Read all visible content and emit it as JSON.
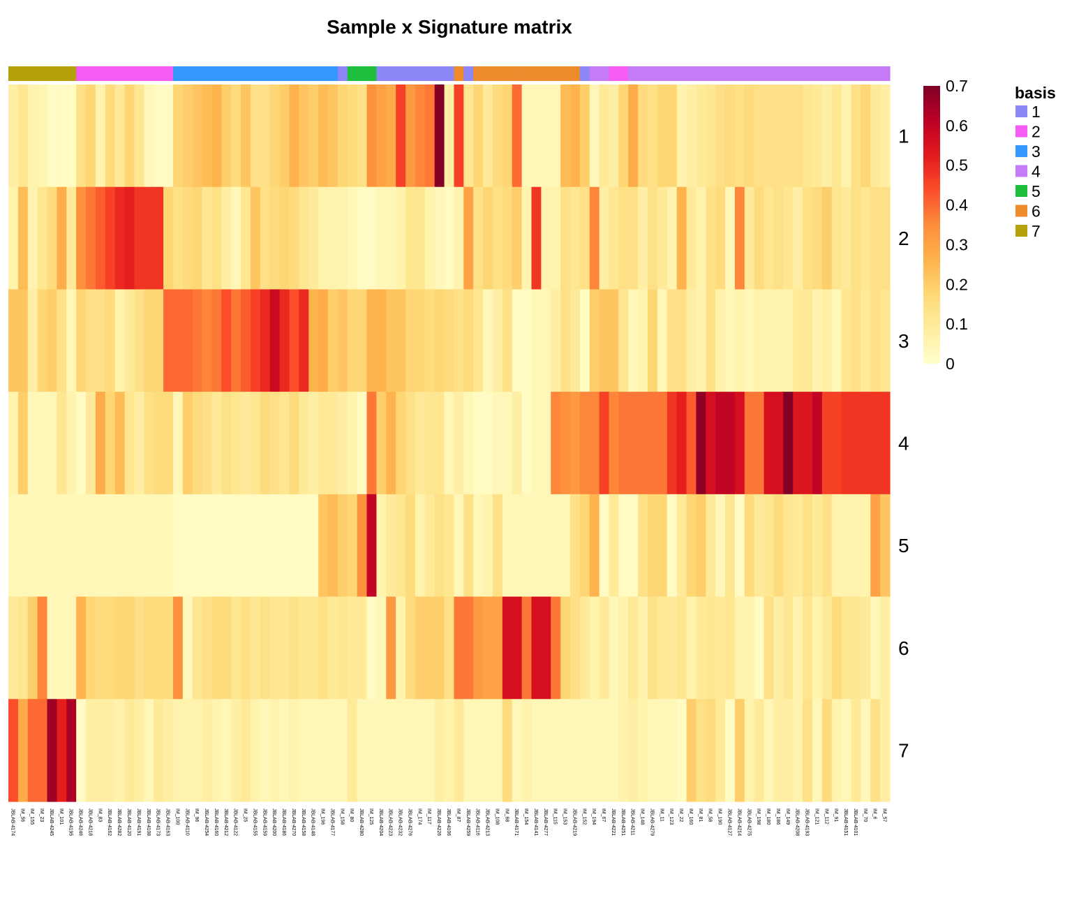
{
  "chart_data": {
    "type": "heatmap",
    "title": "Sample x Signature matrix",
    "rows": [
      "1",
      "2",
      "3",
      "4",
      "5",
      "6",
      "7"
    ],
    "columns": [
      "JBLAB-4174",
      "IM_56",
      "IM_155",
      "IM_23",
      "JBLAB-4245",
      "IM_101",
      "JBLAB-4195",
      "JBLAB-4246",
      "JBLAB-4218",
      "IM_83",
      "JBLAB-4162",
      "JBLAB-4282",
      "JBLAB-4120",
      "JBLAB-4191",
      "JBLAB-4108",
      "JBLAB-4173",
      "JBLAB-4163",
      "IM_100",
      "JBLAB-4110",
      "IM_96",
      "JBLAB-4254",
      "JBLAB-4160",
      "JBLAB-4212",
      "JBLAB-4122",
      "IM_25",
      "JBLAB-4155",
      "JBLAB-4159",
      "JBLAB-4200",
      "JBLAB-4186",
      "JBLAB-4270",
      "JBLAB-4158",
      "JBLAB-4148",
      "IM_196",
      "JBLAB-4177",
      "IM_158",
      "IM_80",
      "JBLAB-4280",
      "IM_125",
      "JBLAB-4204",
      "JBLAB-4223",
      "JBLAB-4232",
      "JBLAB-4276",
      "IM_174",
      "IM_117",
      "JBLAB-4226",
      "JBLAB-4106",
      "IM_87",
      "JBLAB-4259",
      "JBLAB-4116",
      "JBLAB-4213",
      "IM_108",
      "IM_68",
      "JBLAB-4171",
      "IM_154",
      "JBLAB-4141",
      "JBLAB-4277",
      "IM_115",
      "IM_153",
      "JBLAB-4219",
      "IM_152",
      "IM_194",
      "IM_67",
      "JBLAB-4221",
      "JBLAB-4251",
      "JBLAB-4211",
      "IM_148",
      "JBLAB-4279",
      "IM_11",
      "IM_123",
      "IM_22",
      "IM_160",
      "IM_81",
      "IM_58",
      "IM_190",
      "JBLAB-4127",
      "JBLAB-4214",
      "JBLAB-4275",
      "IM_198",
      "IM_180",
      "IM_186",
      "IM_149",
      "JBLAB-4208",
      "JBLAB-4193",
      "IM_121",
      "IM_112",
      "IM_91",
      "JBLAB-4151",
      "JBLAB-4101",
      "IM_70",
      "IM_6",
      "IM_57"
    ],
    "basis": [
      7,
      7,
      7,
      7,
      7,
      7,
      7,
      2,
      2,
      2,
      2,
      2,
      2,
      2,
      2,
      2,
      2,
      3,
      3,
      3,
      3,
      3,
      3,
      3,
      3,
      3,
      3,
      3,
      3,
      3,
      3,
      3,
      3,
      3,
      1,
      5,
      5,
      5,
      1,
      1,
      1,
      1,
      1,
      1,
      1,
      1,
      6,
      1,
      6,
      6,
      6,
      6,
      6,
      6,
      6,
      6,
      6,
      6,
      6,
      1,
      4,
      4,
      2,
      2,
      4,
      4,
      4,
      4,
      4,
      4,
      4,
      4,
      4,
      4,
      4,
      4,
      4,
      4,
      4,
      4,
      4,
      4,
      4,
      4,
      4,
      4,
      4,
      4,
      4,
      4,
      4
    ],
    "values": [
      [
        0.08,
        0.12,
        0.06,
        0.05,
        0.02,
        0.02,
        0.02,
        0.14,
        0.18,
        0.06,
        0.16,
        0.1,
        0.18,
        0.12,
        0.04,
        0.02,
        0.02,
        0.18,
        0.2,
        0.22,
        0.24,
        0.26,
        0.2,
        0.16,
        0.22,
        0.14,
        0.14,
        0.18,
        0.2,
        0.26,
        0.22,
        0.2,
        0.24,
        0.22,
        0.18,
        0.16,
        0.14,
        0.34,
        0.3,
        0.28,
        0.46,
        0.32,
        0.36,
        0.38,
        0.7,
        0.08,
        0.46,
        0.12,
        0.18,
        0.1,
        0.16,
        0.18,
        0.4,
        0.04,
        0.04,
        0.04,
        0.04,
        0.24,
        0.26,
        0.2,
        0.04,
        0.1,
        0.08,
        0.18,
        0.28,
        0.16,
        0.14,
        0.18,
        0.18,
        0.06,
        0.08,
        0.1,
        0.12,
        0.14,
        0.16,
        0.14,
        0.16,
        0.14,
        0.14,
        0.14,
        0.14,
        0.14,
        0.12,
        0.1,
        0.08,
        0.12,
        0.06,
        0.14,
        0.18,
        0.1,
        0.08
      ],
      [
        0.06,
        0.24,
        0.06,
        0.12,
        0.16,
        0.28,
        0.1,
        0.34,
        0.38,
        0.42,
        0.46,
        0.5,
        0.52,
        0.48,
        0.48,
        0.48,
        0.18,
        0.14,
        0.16,
        0.18,
        0.12,
        0.14,
        0.08,
        0.04,
        0.12,
        0.22,
        0.14,
        0.16,
        0.18,
        0.16,
        0.12,
        0.1,
        0.06,
        0.06,
        0.06,
        0.04,
        0.02,
        0.02,
        0.04,
        0.04,
        0.06,
        0.12,
        0.12,
        0.06,
        0.04,
        0.02,
        0.06,
        0.3,
        0.14,
        0.18,
        0.14,
        0.16,
        0.2,
        0.06,
        0.48,
        0.06,
        0.06,
        0.14,
        0.12,
        0.14,
        0.36,
        0.08,
        0.12,
        0.14,
        0.14,
        0.08,
        0.14,
        0.1,
        0.06,
        0.26,
        0.1,
        0.06,
        0.14,
        0.16,
        0.04,
        0.36,
        0.1,
        0.16,
        0.12,
        0.14,
        0.12,
        0.08,
        0.14,
        0.16,
        0.2,
        0.12,
        0.1,
        0.14,
        0.12,
        0.14,
        0.14
      ],
      [
        0.22,
        0.22,
        0.08,
        0.18,
        0.2,
        0.14,
        0.04,
        0.18,
        0.14,
        0.14,
        0.16,
        0.06,
        0.1,
        0.14,
        0.18,
        0.18,
        0.4,
        0.4,
        0.4,
        0.38,
        0.36,
        0.38,
        0.44,
        0.38,
        0.42,
        0.46,
        0.5,
        0.58,
        0.5,
        0.44,
        0.5,
        0.26,
        0.28,
        0.2,
        0.22,
        0.18,
        0.18,
        0.26,
        0.26,
        0.22,
        0.22,
        0.18,
        0.18,
        0.16,
        0.18,
        0.16,
        0.14,
        0.16,
        0.12,
        0.04,
        0.08,
        0.14,
        0.02,
        0.02,
        0.04,
        0.04,
        0.08,
        0.14,
        0.1,
        0.02,
        0.2,
        0.22,
        0.22,
        0.12,
        0.04,
        0.06,
        0.18,
        0.04,
        0.14,
        0.14,
        0.08,
        0.06,
        0.14,
        0.06,
        0.04,
        0.06,
        0.04,
        0.06,
        0.06,
        0.06,
        0.06,
        0.1,
        0.1,
        0.06,
        0.08,
        0.04,
        0.12,
        0.14,
        0.1,
        0.14,
        0.12
      ],
      [
        0.06,
        0.2,
        0.04,
        0.04,
        0.04,
        0.12,
        0.06,
        0.02,
        0.1,
        0.28,
        0.18,
        0.24,
        0.12,
        0.08,
        0.14,
        0.16,
        0.16,
        0.04,
        0.2,
        0.16,
        0.14,
        0.1,
        0.14,
        0.12,
        0.1,
        0.12,
        0.16,
        0.14,
        0.12,
        0.16,
        0.1,
        0.08,
        0.1,
        0.1,
        0.08,
        0.06,
        0.02,
        0.38,
        0.2,
        0.26,
        0.18,
        0.14,
        0.1,
        0.12,
        0.12,
        0.04,
        0.08,
        0.04,
        0.02,
        0.02,
        0.04,
        0.04,
        0.08,
        0.02,
        0.04,
        0.04,
        0.36,
        0.34,
        0.32,
        0.36,
        0.36,
        0.46,
        0.36,
        0.38,
        0.38,
        0.38,
        0.38,
        0.38,
        0.48,
        0.52,
        0.42,
        0.68,
        0.56,
        0.6,
        0.6,
        0.56,
        0.38,
        0.38,
        0.56,
        0.56,
        0.7,
        0.54,
        0.54,
        0.6,
        0.46,
        0.46,
        0.48,
        0.48,
        0.48,
        0.48,
        0.48
      ],
      [
        0.04,
        0.04,
        0.04,
        0.04,
        0.04,
        0.04,
        0.04,
        0.04,
        0.04,
        0.04,
        0.04,
        0.04,
        0.04,
        0.04,
        0.04,
        0.04,
        0.04,
        0.02,
        0.02,
        0.02,
        0.02,
        0.02,
        0.02,
        0.02,
        0.02,
        0.02,
        0.02,
        0.02,
        0.02,
        0.02,
        0.02,
        0.02,
        0.22,
        0.24,
        0.2,
        0.18,
        0.34,
        0.6,
        0.06,
        0.1,
        0.12,
        0.16,
        0.06,
        0.1,
        0.14,
        0.12,
        0.04,
        0.14,
        0.04,
        0.06,
        0.14,
        0.04,
        0.04,
        0.04,
        0.04,
        0.04,
        0.04,
        0.04,
        0.14,
        0.18,
        0.26,
        0.02,
        0.1,
        0.02,
        0.02,
        0.14,
        0.18,
        0.18,
        0.02,
        0.1,
        0.18,
        0.2,
        0.1,
        0.04,
        0.12,
        0.02,
        0.16,
        0.1,
        0.12,
        0.16,
        0.12,
        0.1,
        0.14,
        0.1,
        0.14,
        0.06,
        0.06,
        0.06,
        0.06,
        0.3,
        0.22
      ],
      [
        0.1,
        0.12,
        0.2,
        0.36,
        0.04,
        0.04,
        0.04,
        0.26,
        0.18,
        0.16,
        0.16,
        0.18,
        0.18,
        0.14,
        0.16,
        0.16,
        0.16,
        0.34,
        0.04,
        0.12,
        0.14,
        0.16,
        0.16,
        0.12,
        0.14,
        0.12,
        0.14,
        0.12,
        0.12,
        0.14,
        0.12,
        0.12,
        0.14,
        0.1,
        0.12,
        0.1,
        0.1,
        0.02,
        0.04,
        0.32,
        0.06,
        0.16,
        0.2,
        0.2,
        0.2,
        0.14,
        0.38,
        0.38,
        0.32,
        0.3,
        0.3,
        0.56,
        0.56,
        0.38,
        0.56,
        0.56,
        0.38,
        0.18,
        0.14,
        0.1,
        0.06,
        0.1,
        0.04,
        0.06,
        0.1,
        0.06,
        0.14,
        0.1,
        0.1,
        0.12,
        0.06,
        0.1,
        0.12,
        0.1,
        0.12,
        0.06,
        0.06,
        0.02,
        0.14,
        0.08,
        0.12,
        0.06,
        0.12,
        0.06,
        0.1,
        0.16,
        0.12,
        0.12,
        0.1,
        0.04,
        0.08
      ],
      [
        0.44,
        0.28,
        0.4,
        0.4,
        0.66,
        0.52,
        0.64,
        0.02,
        0.08,
        0.08,
        0.08,
        0.06,
        0.1,
        0.08,
        0.04,
        0.1,
        0.08,
        0.06,
        0.06,
        0.06,
        0.08,
        0.06,
        0.04,
        0.08,
        0.1,
        0.06,
        0.04,
        0.06,
        0.04,
        0.06,
        0.04,
        0.04,
        0.04,
        0.04,
        0.04,
        0.1,
        0.04,
        0.04,
        0.04,
        0.04,
        0.04,
        0.04,
        0.04,
        0.04,
        0.08,
        0.06,
        0.1,
        0.04,
        0.04,
        0.04,
        0.04,
        0.16,
        0.04,
        0.06,
        0.04,
        0.04,
        0.04,
        0.04,
        0.04,
        0.04,
        0.04,
        0.04,
        0.04,
        0.06,
        0.08,
        0.06,
        0.04,
        0.04,
        0.04,
        0.02,
        0.2,
        0.14,
        0.16,
        0.1,
        0.02,
        0.2,
        0.06,
        0.1,
        0.04,
        0.08,
        0.08,
        0.06,
        0.14,
        0.04,
        0.16,
        0.06,
        0.04,
        0.1,
        0.04,
        0.14,
        0.08
      ]
    ],
    "color_scale": {
      "min": 0,
      "max": 0.7,
      "ticks": [
        0,
        0.1,
        0.2,
        0.3,
        0.4,
        0.5,
        0.6,
        0.7
      ],
      "colors": [
        "#FFFFCC",
        "#FFEDA0",
        "#FED976",
        "#FEB24C",
        "#FD8D3C",
        "#FC4E2A",
        "#E31A1C",
        "#BD0026",
        "#800026"
      ]
    },
    "legend": {
      "title": "basis",
      "items": [
        {
          "label": "1",
          "color": "#8C86F6"
        },
        {
          "label": "2",
          "color": "#F45CF4"
        },
        {
          "label": "3",
          "color": "#3399FF"
        },
        {
          "label": "4",
          "color": "#C57AF6"
        },
        {
          "label": "5",
          "color": "#1DBF3C"
        },
        {
          "label": "6",
          "color": "#EE8B2D"
        },
        {
          "label": "7",
          "color": "#B5A20B"
        }
      ]
    }
  }
}
